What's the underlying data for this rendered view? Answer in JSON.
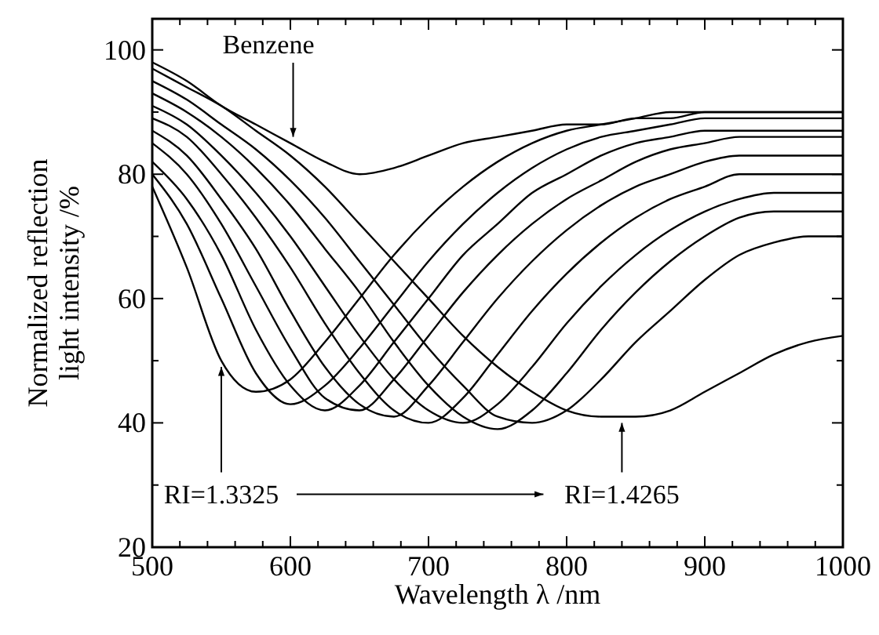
{
  "chart_data": {
    "type": "line",
    "xlabel": "Wavelength λ /nm",
    "ylabel": "Normalized reflection\nlight intensity /%",
    "x": [
      500,
      525,
      550,
      575,
      600,
      625,
      650,
      675,
      700,
      725,
      750,
      775,
      800,
      825,
      850,
      875,
      900,
      925,
      950,
      975,
      1000
    ],
    "xlim": [
      500,
      1000
    ],
    "xticks": [
      500,
      {
        "value": 520,
        "label": null
      },
      {
        "value": 540,
        "label": null
      },
      {
        "value": 560,
        "label": null
      },
      {
        "value": 580,
        "label": null
      },
      600,
      {
        "value": 620,
        "label": null
      },
      {
        "value": 640,
        "label": null
      },
      {
        "value": 660,
        "label": null
      },
      {
        "value": 680,
        "label": null
      },
      700,
      {
        "value": 720,
        "label": null
      },
      {
        "value": 740,
        "label": null
      },
      {
        "value": 760,
        "label": null
      },
      {
        "value": 780,
        "label": null
      },
      800,
      {
        "value": 820,
        "label": null
      },
      {
        "value": 840,
        "label": null
      },
      {
        "value": 860,
        "label": null
      },
      {
        "value": 880,
        "label": null
      },
      900,
      {
        "value": 920,
        "label": null
      },
      {
        "value": 940,
        "label": null
      },
      {
        "value": 960,
        "label": null
      },
      {
        "value": 980,
        "label": null
      },
      1000
    ],
    "ylim": [
      20,
      105
    ],
    "yticks": [
      20,
      {
        "value": 30,
        "label": null
      },
      40,
      {
        "value": 50,
        "label": null
      },
      60,
      {
        "value": 70,
        "label": null
      },
      80,
      {
        "value": 90,
        "label": null
      },
      100
    ],
    "grid": false,
    "marker": "none",
    "line_style": "solid",
    "series": [
      {
        "color": "#000000",
        "values": [
          78,
          65,
          50,
          45,
          47,
          53,
          60,
          67,
          73,
          78,
          82,
          85,
          87,
          88,
          89,
          90,
          90,
          90,
          90,
          90,
          90
        ]
      },
      {
        "color": "#000000",
        "values": [
          80,
          72,
          60,
          48,
          43,
          46,
          52,
          59,
          66,
          72,
          77,
          81,
          84,
          86,
          87,
          88,
          89,
          89,
          89,
          89,
          89
        ]
      },
      {
        "color": "#000000",
        "values": [
          82,
          76,
          67,
          55,
          46,
          42,
          46,
          53,
          60,
          67,
          72,
          77,
          80,
          83,
          85,
          86,
          87,
          87,
          87,
          87,
          87
        ]
      },
      {
        "color": "#000000",
        "values": [
          85,
          80,
          72,
          62,
          52,
          44,
          42,
          47,
          54,
          61,
          67,
          72,
          76,
          79,
          82,
          84,
          85,
          86,
          86,
          86,
          86
        ]
      },
      {
        "color": "#000000",
        "values": [
          87,
          83,
          76,
          68,
          58,
          49,
          43,
          41,
          46,
          53,
          60,
          66,
          71,
          75,
          78,
          80,
          82,
          83,
          83,
          83,
          83
        ]
      },
      {
        "color": "#000000",
        "values": [
          89,
          86,
          80,
          73,
          65,
          56,
          48,
          42,
          40,
          44,
          51,
          58,
          64,
          69,
          73,
          76,
          78,
          80,
          80,
          80,
          80
        ]
      },
      {
        "color": "#000000",
        "values": [
          91,
          88,
          83,
          77,
          70,
          62,
          54,
          47,
          42,
          40,
          43,
          49,
          56,
          62,
          67,
          71,
          74,
          76,
          77,
          77,
          77
        ]
      },
      {
        "color": "#000000",
        "values": [
          93,
          90,
          86,
          81,
          75,
          68,
          61,
          53,
          46,
          41,
          39,
          42,
          48,
          55,
          61,
          66,
          70,
          73,
          74,
          74,
          74
        ]
      },
      {
        "color": "#000000",
        "values": [
          95,
          92,
          88,
          84,
          79,
          73,
          66,
          59,
          52,
          46,
          41,
          40,
          42,
          47,
          53,
          58,
          63,
          67,
          69,
          70,
          70
        ]
      },
      {
        "color": "#000000",
        "values": [
          97,
          94,
          91,
          87,
          83,
          78,
          72,
          66,
          60,
          54,
          49,
          45,
          42,
          41,
          41,
          42,
          45,
          48,
          51,
          53,
          54
        ]
      },
      {
        "color": "#000000",
        "values": [
          98,
          95,
          91,
          88,
          85,
          82,
          80,
          81,
          83,
          85,
          86,
          87,
          88,
          88,
          89,
          89,
          90,
          90,
          90,
          90,
          90
        ]
      }
    ],
    "annotations": [
      {
        "text": "Benzene",
        "x": 602,
        "y": 85
      },
      {
        "text": "RI=1.3325",
        "x": 550,
        "y": 50
      },
      {
        "text": "RI=1.4265",
        "x": 840,
        "y": 41
      }
    ]
  }
}
